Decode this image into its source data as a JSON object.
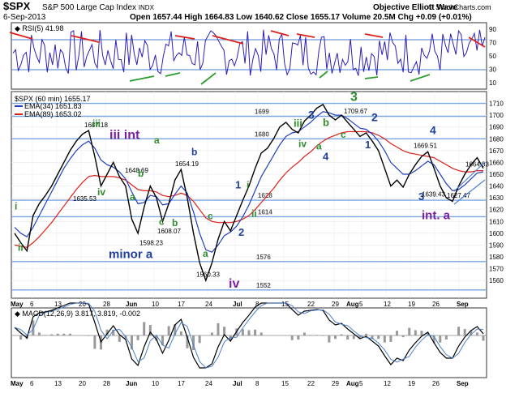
{
  "header": {
    "symbol": "$SPX",
    "name": "S&P 500 Large Cap Index",
    "exchange": "INDX",
    "date": "6-Sep-2013",
    "ohlc_text": "Open 1657.44  High 1664.83  Low 1640.62  Close 1655.17  Volume 20.5M  Chg +0.09 (+0.01%)",
    "watermark": "Objective Elliott Wave",
    "copyright": "© StockCharts.com"
  },
  "rsi_panel": {
    "label": "RSI(5) 41.98",
    "levels": [
      90,
      70,
      50,
      30,
      10
    ]
  },
  "price_panel": {
    "legend": [
      {
        "label": "$SPX (60 min) 1655.17",
        "color": "#000000"
      },
      {
        "label": "EMA(34) 1651.83",
        "color": "#1f3fbf"
      },
      {
        "label": "EMA(89) 1653.02",
        "color": "#e0201a"
      }
    ],
    "y_ticks": [
      1560,
      1570,
      1580,
      1590,
      1600,
      1610,
      1620,
      1630,
      1640,
      1650,
      1660,
      1670,
      1680,
      1690,
      1700,
      1710
    ],
    "x_ticks": [
      "May",
      "6",
      "13",
      "20",
      "28",
      "Jun",
      "10",
      "17",
      "24",
      "Jul",
      "8",
      "15",
      "22",
      "29",
      "Aug",
      "5",
      "12",
      "19",
      "26",
      "Sep"
    ],
    "support_labels": [
      "1699",
      "1680",
      "1628",
      "1614",
      "1576",
      "1552"
    ]
  },
  "macd_panel": {
    "label": "MACD(12,26,9) 3.817, 3.819, -0.002",
    "x_ticks": [
      "May",
      "6",
      "13",
      "20",
      "28",
      "Jun",
      "10",
      "17",
      "24",
      "Jul",
      "8",
      "15",
      "22",
      "29",
      "Aug",
      "5",
      "12",
      "19",
      "26",
      "Sep"
    ]
  },
  "wave_labels": [
    {
      "text": "i",
      "color": "#2e8b2e"
    },
    {
      "text": "ii",
      "color": "#2e8b2e"
    },
    {
      "text": "iii",
      "color": "#2e8b2e"
    },
    {
      "text": "iv",
      "color": "#2e8b2e"
    },
    {
      "text": "iii int",
      "color": "#7b1fa2"
    },
    {
      "text": "a",
      "color": "#2e8b2e"
    },
    {
      "text": "b",
      "color": "#2e8b2e"
    },
    {
      "text": "a",
      "color": "#2e8b2e"
    },
    {
      "text": "c",
      "color": "#2e8b2e"
    },
    {
      "text": "b",
      "color": "#1f3f9f"
    },
    {
      "text": "b",
      "color": "#2e8b2e"
    },
    {
      "text": "minor a",
      "color": "#1f3f9f"
    },
    {
      "text": "a",
      "color": "#2e8b2e"
    },
    {
      "text": "c",
      "color": "#2e8b2e"
    },
    {
      "text": "iv",
      "color": "#7b1fa2"
    },
    {
      "text": "1",
      "color": "#1f3f9f"
    },
    {
      "text": "i",
      "color": "#2e8b2e"
    },
    {
      "text": "ii",
      "color": "#2e8b2e"
    },
    {
      "text": "2",
      "color": "#1f3f9f"
    },
    {
      "text": "iii",
      "color": "#2e8b2e"
    },
    {
      "text": "3",
      "color": "#1f3f9f"
    },
    {
      "text": "b",
      "color": "#2e8b2e"
    },
    {
      "text": "iv",
      "color": "#2e8b2e"
    },
    {
      "text": "a",
      "color": "#2e8b2e"
    },
    {
      "text": "c",
      "color": "#2e8b2e"
    },
    {
      "text": "4",
      "color": "#1f3f9f"
    },
    {
      "text": "3",
      "color": "#2e8b2e"
    },
    {
      "text": "2",
      "color": "#1f3f9f"
    },
    {
      "text": "1",
      "color": "#1f3f9f"
    },
    {
      "text": "4",
      "color": "#1f3f9f"
    },
    {
      "text": "3",
      "color": "#1f3f9f"
    },
    {
      "text": "int. a",
      "color": "#7b1fa2"
    }
  ],
  "chart_data": {
    "type": "line",
    "title": "$SPX S&P 500 Large Cap Index INDX",
    "ylim": [
      1545,
      1720
    ],
    "annotated_points": [
      {
        "label": "1687.18",
        "x": "May 22",
        "y": 1687.18
      },
      {
        "label": "1635.53",
        "x": "May 24",
        "y": 1635.53
      },
      {
        "label": "1648.69",
        "x": "Jun 5",
        "y": 1648.69
      },
      {
        "label": "1598.23",
        "x": "Jun 6",
        "y": 1598.23
      },
      {
        "label": "1654.19",
        "x": "Jun 18",
        "y": 1654.19
      },
      {
        "label": "1608.07",
        "x": "Jun 13",
        "y": 1608.07
      },
      {
        "label": "1560.33",
        "x": "Jun 24",
        "y": 1560.33
      },
      {
        "label": "1709.67",
        "x": "Aug 2",
        "y": 1709.67
      },
      {
        "label": "1669.51",
        "x": "Aug 28",
        "y": 1669.51
      },
      {
        "label": "1639.43",
        "x": "Aug 21",
        "y": 1639.43
      },
      {
        "label": "1627.47",
        "x": "Aug 30",
        "y": 1627.47
      },
      {
        "label": "1664.83",
        "x": "Sep 6",
        "y": 1664.83
      }
    ],
    "support_levels": [
      1710,
      1699,
      1680,
      1628,
      1614,
      1576,
      1552
    ],
    "price_path": [
      1600,
      1592,
      1585,
      1615,
      1625,
      1632,
      1640,
      1650,
      1660,
      1670,
      1678,
      1684,
      1687,
      1665,
      1640,
      1650,
      1660,
      1648,
      1640,
      1612,
      1600,
      1622,
      1640,
      1630,
      1610,
      1625,
      1645,
      1654,
      1630,
      1600,
      1575,
      1560,
      1575,
      1595,
      1610,
      1602,
      1615,
      1628,
      1640,
      1655,
      1668,
      1672,
      1680,
      1690,
      1694,
      1688,
      1685,
      1695,
      1700,
      1706,
      1709,
      1700,
      1696,
      1700,
      1694,
      1688,
      1682,
      1685,
      1678,
      1670,
      1655,
      1640,
      1645,
      1639,
      1650,
      1658,
      1665,
      1669,
      1655,
      1640,
      1630,
      1627,
      1640,
      1650,
      1658,
      1664,
      1655
    ],
    "ema34_path": [
      1605,
      1600,
      1597,
      1605,
      1615,
      1625,
      1635,
      1645,
      1655,
      1663,
      1670,
      1675,
      1678,
      1672,
      1662,
      1658,
      1656,
      1652,
      1646,
      1635,
      1625,
      1626,
      1632,
      1631,
      1624,
      1625,
      1633,
      1640,
      1634,
      1618,
      1600,
      1586,
      1584,
      1590,
      1598,
      1601,
      1606,
      1614,
      1624,
      1636,
      1648,
      1657,
      1666,
      1675,
      1682,
      1685,
      1686,
      1690,
      1694,
      1699,
      1703,
      1702,
      1700,
      1700,
      1697,
      1693,
      1689,
      1688,
      1684,
      1678,
      1670,
      1660,
      1655,
      1650,
      1650,
      1653,
      1657,
      1661,
      1658,
      1650,
      1642,
      1636,
      1637,
      1641,
      1646,
      1651,
      1652
    ],
    "ema89_path": [
      1590,
      1589,
      1588,
      1592,
      1597,
      1603,
      1609,
      1616,
      1623,
      1630,
      1637,
      1643,
      1648,
      1649,
      1648,
      1648,
      1648,
      1647,
      1645,
      1641,
      1637,
      1636,
      1636,
      1635,
      1632,
      1631,
      1632,
      1634,
      1632,
      1627,
      1620,
      1613,
      1610,
      1609,
      1609,
      1609,
      1610,
      1612,
      1615,
      1620,
      1626,
      1632,
      1638,
      1645,
      1651,
      1656,
      1660,
      1665,
      1669,
      1674,
      1678,
      1681,
      1683,
      1685,
      1686,
      1686,
      1686,
      1686,
      1685,
      1683,
      1680,
      1676,
      1673,
      1670,
      1668,
      1667,
      1666,
      1665,
      1664,
      1661,
      1658,
      1655,
      1653,
      1652,
      1652,
      1653,
      1653
    ]
  }
}
